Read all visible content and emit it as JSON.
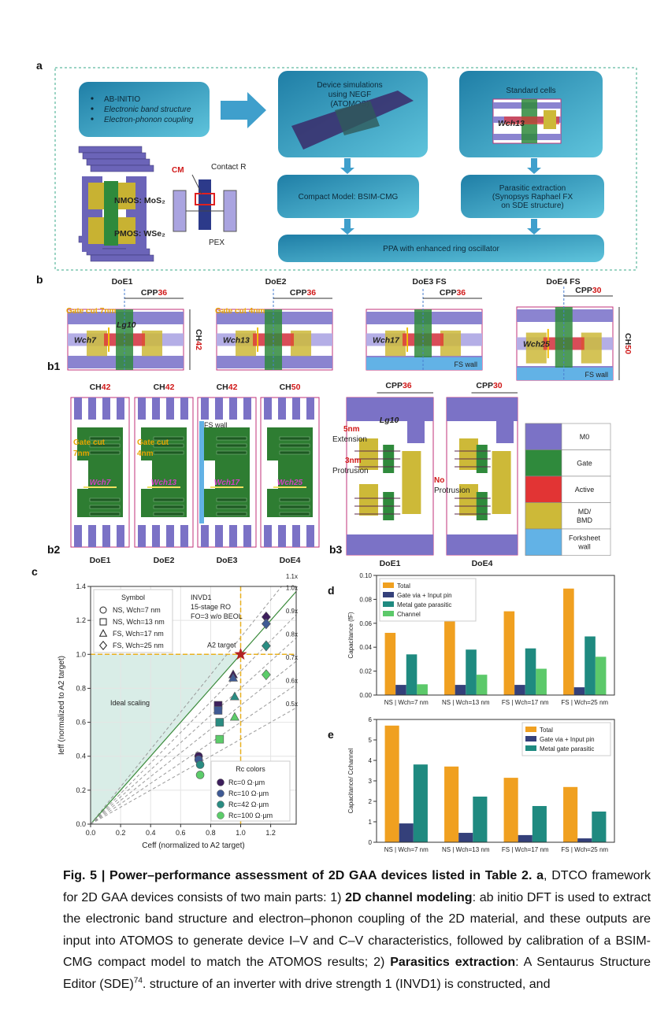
{
  "panel_a": {
    "label": "a",
    "bullets": [
      "AB-INITIO",
      "Electronic band structure",
      "Electron-phonon coupling"
    ],
    "device_sim": [
      "Device simulations",
      "using NEGF",
      "(ATOMOS)"
    ],
    "standard_cells": "Standard cells",
    "wch_label": "Wch13",
    "cm": "CM",
    "contact_r": "Contact R",
    "nmos": "NMOS: MoS₂",
    "pmos": "PMOS: WSe₂",
    "pex": "PEX",
    "compact_model": "Compact Model: BSIM-CMG",
    "parasitic": [
      "Parasitic extraction",
      "(Synopsys Raphael FX",
      "on SDE structure)"
    ],
    "ppa": "PPA with enhanced ring oscillator"
  },
  "panel_b": {
    "label": "b",
    "b1": "b1",
    "b2": "b2",
    "b3": "b3",
    "b1_cells": [
      {
        "title": "DoE1",
        "cpp": {
          "text": "CPP",
          "num": 36
        },
        "ch": {
          "text": "CH",
          "num": 42
        },
        "gate_cut": "Gate cut 7nm",
        "lg": "Lg10",
        "wch": "Wch7"
      },
      {
        "title": "DoE2",
        "cpp": {
          "text": "CPP",
          "num": 36
        },
        "gate_cut": "Gate cut 4nm",
        "wch": "Wch13"
      },
      {
        "title": "DoE3 FS",
        "cpp": {
          "text": "CPP",
          "num": 36
        },
        "fs_wall": "FS wall",
        "wch": "Wch17"
      },
      {
        "title": "DoE4 FS",
        "cpp": {
          "text": "CPP",
          "num": 30
        },
        "ch": {
          "text": "CH",
          "num": 50
        },
        "fs_wall": "FS wall",
        "wch": "Wch25"
      }
    ],
    "b2_cells": [
      {
        "title": "DoE1",
        "ch": {
          "text": "CH",
          "num": 42
        },
        "gate_cut": [
          "Gate cut",
          "7nm"
        ],
        "wch": "Wch7"
      },
      {
        "title": "DoE2",
        "ch": {
          "text": "CH",
          "num": 42
        },
        "gate_cut": [
          "Gate cut",
          "4nm"
        ],
        "wch": "Wch13"
      },
      {
        "title": "DoE3",
        "ch": {
          "text": "CH",
          "num": 42
        },
        "fs_wall": "FS wall",
        "wch": "Wch17"
      },
      {
        "title": "DoE4",
        "ch": {
          "text": "CH",
          "num": 50
        },
        "wch": "Wch25"
      }
    ],
    "b3_cells": [
      {
        "title": "DoE1",
        "cpp": {
          "text": "CPP",
          "num": 36
        },
        "lg": "Lg10",
        "ext": [
          "5nm",
          "Extension"
        ],
        "prot": [
          "3nm",
          "Protrusion"
        ]
      },
      {
        "title": "DoE4",
        "cpp": {
          "text": "CPP",
          "num": 30
        },
        "prot": [
          "No",
          "Protrusion"
        ]
      }
    ],
    "legend": [
      {
        "label": [
          "M0"
        ],
        "color": "#7b72c6"
      },
      {
        "label": [
          "Gate"
        ],
        "color": "#2f8a3c"
      },
      {
        "label": [
          "Active"
        ],
        "color": "#e23434"
      },
      {
        "label": [
          "MD/",
          "BMD"
        ],
        "color": "#cdb938"
      },
      {
        "label": [
          "Forksheet",
          "wall"
        ],
        "color": "#62b2e6"
      }
    ]
  },
  "chart_data": [
    {
      "type": "scatter",
      "panel": "c",
      "xlabel": "Ceff (normalized to A2 target)",
      "ylabel": "Ieff (normalized to A2 target)",
      "xlim": [
        0,
        1.37
      ],
      "ylim": [
        0,
        1.4
      ],
      "xticks": [
        {
          "value": 0,
          "label": "0.0"
        },
        0.2,
        0.4,
        0.6,
        0.8,
        {
          "value": 1,
          "label": "1.0"
        },
        1.2
      ],
      "yticks": [
        {
          "value": 0,
          "label": "0.0"
        },
        0.2,
        0.4,
        0.6,
        0.8,
        {
          "value": 1,
          "label": "1.0"
        },
        1.2,
        1.4
      ],
      "grid": true,
      "annotation": [
        "INVD1",
        "15-stage RO",
        "FO=3 w/o BEOL"
      ],
      "target": {
        "label": "A2 target",
        "x": 1,
        "y": 1,
        "color": "#b22222"
      },
      "region_label": "Ideal scaling",
      "ref_lines": [
        {
          "slope": 1.1,
          "label": "1.1x",
          "color": "#9a9a9a"
        },
        {
          "slope": 1.0,
          "label": "1.0x",
          "color": "#3a8a3a"
        },
        {
          "slope": 0.9,
          "label": "0.9x",
          "color": "#9a9a9a"
        },
        {
          "slope": 0.8,
          "label": "0.8x",
          "color": "#9a9a9a"
        },
        {
          "slope": 0.7,
          "label": "0.7x",
          "color": "#9a9a9a"
        },
        {
          "slope": 0.6,
          "label": "0.6x",
          "color": "#9a9a9a"
        },
        {
          "slope": 0.5,
          "label": "0.5x",
          "color": "#9a9a9a"
        }
      ],
      "symbol_legend": {
        "title": "Symbol",
        "items": [
          {
            "name": "NS, Wch=7 nm",
            "marker": "circle"
          },
          {
            "name": "NS, Wch=13 nm",
            "marker": "square"
          },
          {
            "name": "FS, Wch=17 nm",
            "marker": "triangle"
          },
          {
            "name": "FS, Wch=25 nm",
            "marker": "diamond"
          }
        ]
      },
      "color_legend_title": "Rc colors",
      "series": [
        {
          "name": "Rc=0 Ω·µm",
          "color": "#3d1f5c",
          "x": [
            0.72,
            0.85,
            0.95,
            1.17
          ],
          "values": [
            0.4,
            0.7,
            0.88,
            1.22
          ]
        },
        {
          "name": "Rc=10 Ω·µm",
          "color": "#3f5a94",
          "x": [
            0.72,
            0.85,
            0.95,
            1.17
          ],
          "values": [
            0.38,
            0.67,
            0.86,
            1.18
          ]
        },
        {
          "name": "Rc=42 Ω·µm",
          "color": "#2a8c82",
          "x": [
            0.73,
            0.86,
            0.96,
            1.17
          ],
          "values": [
            0.35,
            0.6,
            0.75,
            1.05
          ]
        },
        {
          "name": "Rc=100 Ω·µm",
          "color": "#5ccc6a",
          "x": [
            0.73,
            0.86,
            0.96,
            1.17
          ],
          "values": [
            0.29,
            0.5,
            0.63,
            0.88
          ]
        }
      ]
    },
    {
      "type": "bar",
      "panel": "d",
      "ylabel": "Capacitance (fF)",
      "categories": [
        "NS | Wch=7 nm",
        "NS | Wch=13 nm",
        "FS | Wch=17 nm",
        "FS | Wch=25 nm"
      ],
      "ylim": [
        0,
        0.1
      ],
      "yticks": [
        {
          "value": 0,
          "label": "0.00"
        },
        0.02,
        0.04,
        0.06,
        0.08,
        {
          "value": 0.1,
          "label": "0.10"
        }
      ],
      "legend": "upper left",
      "series": [
        {
          "name": "Total",
          "color": "#f0a020",
          "values": [
            0.052,
            0.064,
            0.07,
            0.089
          ]
        },
        {
          "name": "Gate via + Input pin",
          "color": "#34407a",
          "values": [
            0.0085,
            0.0085,
            0.0085,
            0.0065
          ]
        },
        {
          "name": "Metal gate parasitic",
          "color": "#1f8a80",
          "values": [
            0.034,
            0.038,
            0.039,
            0.049
          ]
        },
        {
          "name": "Channel",
          "color": "#5cc96a",
          "values": [
            0.009,
            0.017,
            0.022,
            0.032
          ]
        }
      ]
    },
    {
      "type": "bar",
      "panel": "e",
      "ylabel": "Capacitance/ Cchannel",
      "categories": [
        "NS | Wch=7 nm",
        "NS | Wch=13 nm",
        "FS | Wch=17 nm",
        "FS | Wch=25 nm"
      ],
      "ylim": [
        0,
        6
      ],
      "yticks": [
        0,
        1,
        2,
        3,
        4,
        5,
        6
      ],
      "legend": "upper right",
      "series": [
        {
          "name": "Total",
          "color": "#f0a020",
          "values": [
            5.7,
            3.7,
            3.15,
            2.7
          ]
        },
        {
          "name": "Gate via + Input pin",
          "color": "#34407a",
          "values": [
            0.92,
            0.46,
            0.35,
            0.19
          ]
        },
        {
          "name": "Metal gate parasitic",
          "color": "#1f8a80",
          "values": [
            3.8,
            2.23,
            1.77,
            1.5
          ]
        }
      ]
    }
  ],
  "caption": {
    "runs": [
      {
        "text": "Fig. 5 | Power–performance assessment of 2D GAA devices listed in Table 2. a",
        "bold": true
      },
      {
        "text": ", DTCO framework for 2D GAA devices consists of two main parts: 1) "
      },
      {
        "text": "2D channel modeling",
        "bold": true
      },
      {
        "text": ": ab initio DFT is used to extract the electronic band structure and electron–phonon coupling of the 2D material, and these outputs are input into ATOMOS to generate device I–V and C–V characteristics, followed by calibration of a BSIM-CMG compact model to match the ATOMOS results; 2) "
      },
      {
        "text": "Parasitics extraction",
        "bold": true
      },
      {
        "text": ": A Sentaurus Structure Editor (SDE)"
      },
      {
        "text": "74",
        "sup": true
      },
      {
        "text": ". structure of an inverter with drive strength 1 (INVD1) is constructed, and"
      }
    ]
  }
}
